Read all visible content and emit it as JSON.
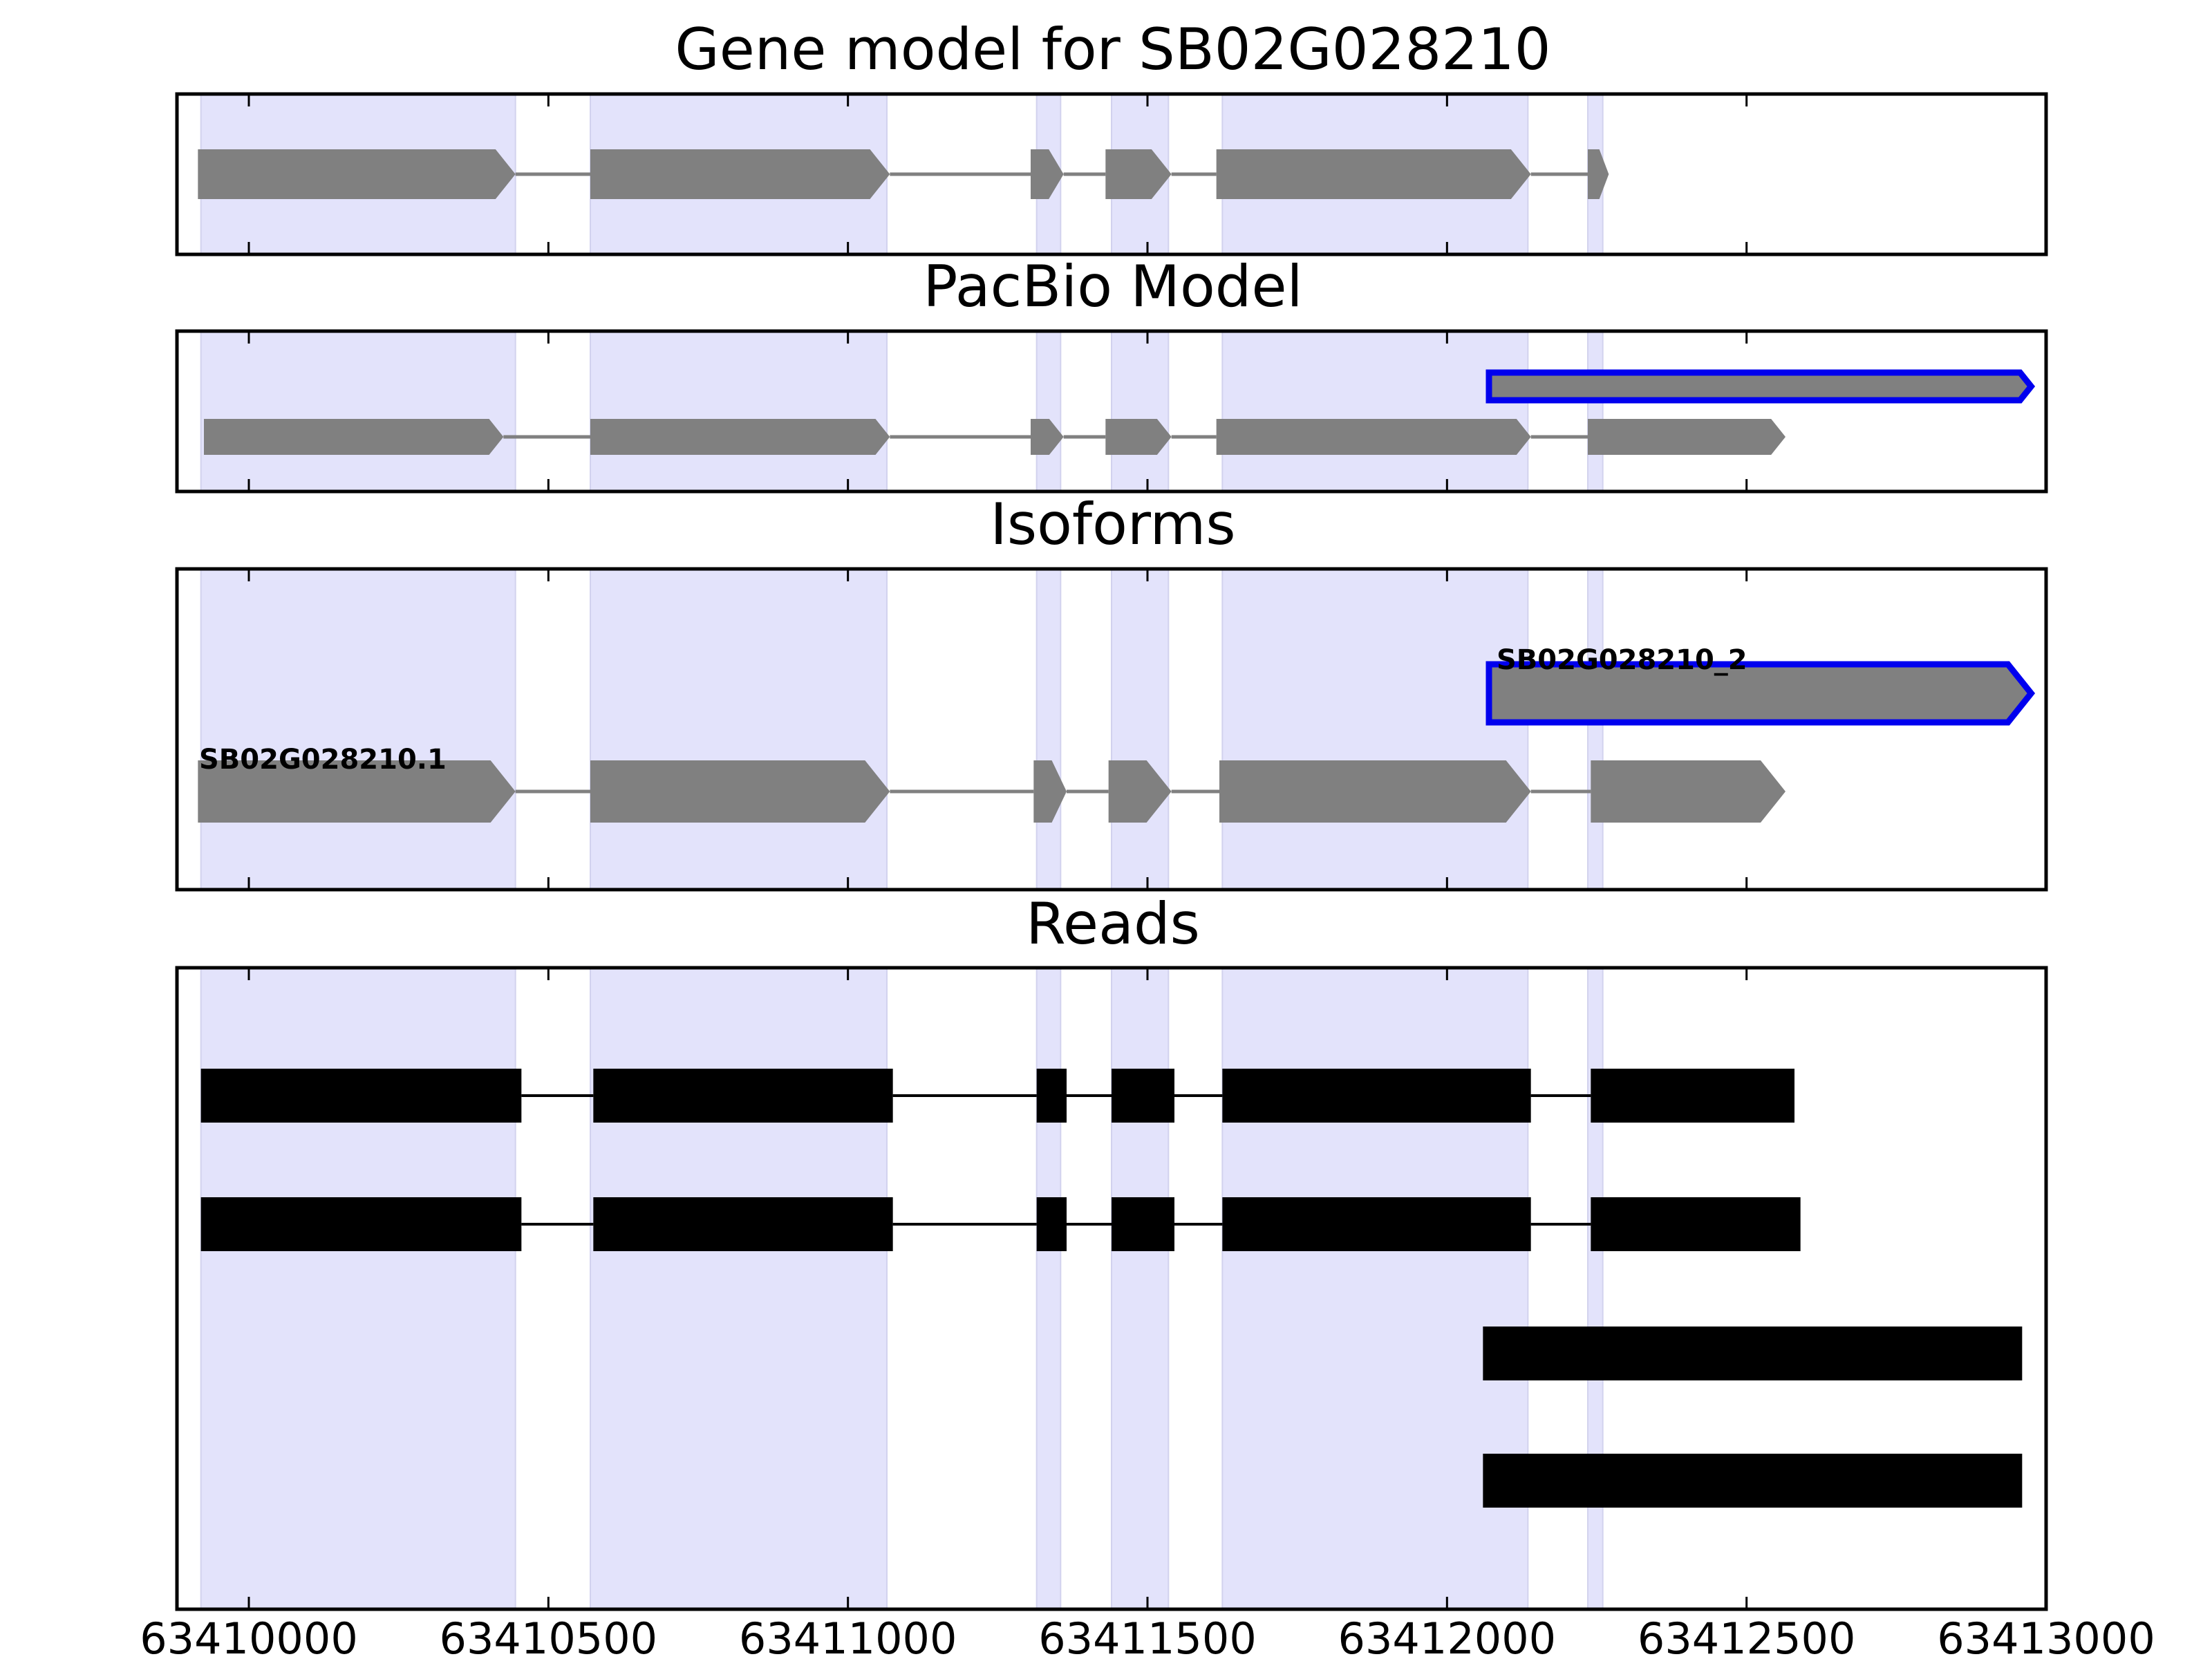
{
  "chart_data": {
    "type": "gene-track",
    "xlim": [
      63409880,
      63413000
    ],
    "x_ticks": [
      63410000,
      63410500,
      63411000,
      63411500,
      63412000,
      63412500,
      63413000
    ],
    "x_tick_labels": [
      "63410000",
      "63410500",
      "63411000",
      "63411500",
      "63412000",
      "63412500",
      "63413000"
    ],
    "exon_highlights": [
      [
        63409920,
        63410445
      ],
      [
        63410570,
        63411065
      ],
      [
        63411315,
        63411355
      ],
      [
        63411440,
        63411535
      ],
      [
        63411625,
        63412135
      ],
      [
        63412235,
        63412260
      ]
    ],
    "colors": {
      "highlight": "#e3e3fb",
      "model_feature": "#808080",
      "intron": "#808080",
      "selected_outline": "#0000ee",
      "read": "#000000"
    },
    "panels": [
      {
        "id": "gene-model",
        "title": "Gene model for SB02G028210",
        "rows": [
          {
            "exons": [
              [
                63409915,
                63410445
              ],
              [
                63410570,
                63411070
              ],
              [
                63411305,
                63411360
              ],
              [
                63411430,
                63411540
              ],
              [
                63411615,
                63412140
              ],
              [
                63412235,
                63412270
              ]
            ],
            "strand": "+"
          }
        ]
      },
      {
        "id": "pacbio-model",
        "title": "PacBio Model",
        "rows": [
          {
            "exons": [
              [
                63412070,
                63412975
              ]
            ],
            "strand": "+",
            "selected": true
          },
          {
            "exons": [
              [
                63409925,
                63410425
              ],
              [
                63410570,
                63411070
              ],
              [
                63411305,
                63411360
              ],
              [
                63411430,
                63411540
              ],
              [
                63411615,
                63412140
              ],
              [
                63412235,
                63412565
              ]
            ],
            "strand": "+"
          }
        ]
      },
      {
        "id": "isoforms",
        "title": "Isoforms",
        "rows": [
          {
            "label": "SB02G028210_2",
            "exons": [
              [
                63412070,
                63412975
              ]
            ],
            "strand": "+",
            "selected": true
          },
          {
            "label": "SB02G028210.1",
            "exons": [
              [
                63409915,
                63410445
              ],
              [
                63410570,
                63411070
              ],
              [
                63411310,
                63411365
              ],
              [
                63411435,
                63411540
              ],
              [
                63411620,
                63412140
              ],
              [
                63412240,
                63412565
              ]
            ],
            "strand": "+"
          }
        ]
      },
      {
        "id": "reads",
        "title": "Reads",
        "rows": [
          {
            "exons": [
              [
                63409920,
                63410455
              ],
              [
                63410575,
                63411075
              ],
              [
                63411315,
                63411365
              ],
              [
                63411440,
                63411545
              ],
              [
                63411625,
                63412140
              ],
              [
                63412240,
                63412580
              ]
            ]
          },
          {
            "exons": [
              [
                63409920,
                63410455
              ],
              [
                63410575,
                63411075
              ],
              [
                63411315,
                63411365
              ],
              [
                63411440,
                63411545
              ],
              [
                63411625,
                63412140
              ],
              [
                63412240,
                63412590
              ]
            ]
          },
          {
            "exons": [
              [
                63412060,
                63412960
              ]
            ]
          },
          {
            "exons": [
              [
                63412060,
                63412960
              ]
            ]
          }
        ]
      }
    ]
  }
}
